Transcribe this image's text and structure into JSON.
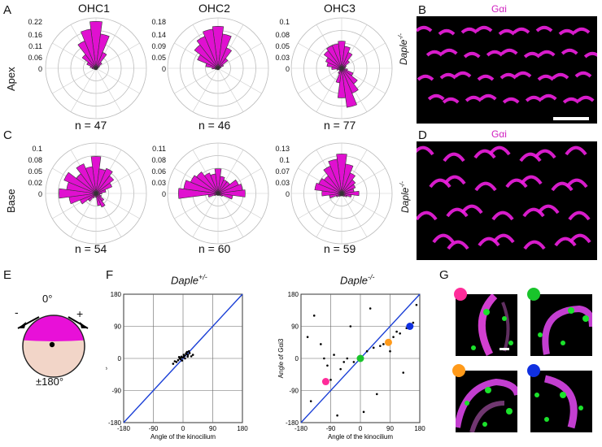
{
  "panels": {
    "A": "A",
    "B": "B",
    "C": "C",
    "D": "D",
    "E": "E",
    "F": "F",
    "G": "G"
  },
  "row_labels": {
    "apex": "Apex",
    "base": "Base"
  },
  "rose_titles": [
    "OHC1",
    "OHC2",
    "OHC3"
  ],
  "apex": {
    "ticks": [
      [
        "0.22",
        "0.16",
        "0.11",
        "0.06",
        "0"
      ],
      [
        "0.18",
        "0.14",
        "0.09",
        "0.05",
        "0"
      ],
      [
        "0.1",
        "0.08",
        "0.05",
        "0.03",
        "0"
      ]
    ],
    "n": [
      "n = 47",
      "n = 46",
      "n = 77"
    ]
  },
  "base": {
    "ticks": [
      [
        "0.1",
        "0.08",
        "0.05",
        "0.02",
        "0"
      ],
      [
        "0.11",
        "0.08",
        "0.06",
        "0.03",
        "0"
      ],
      [
        "0.13",
        "0.1",
        "0.07",
        "0.03",
        "0"
      ]
    ],
    "n": [
      "n = 54",
      "n = 60",
      "n = 59"
    ]
  },
  "micro": {
    "label_galpha": "Gαi",
    "genotype_ko": "Daple",
    "genotype_ko_sup": "-/-"
  },
  "panel_E": {
    "top": "0°",
    "bottom": "±180°",
    "minus": "-",
    "plus": "+"
  },
  "panel_F": {
    "left_title": "Daple",
    "left_sup": "+/-",
    "right_title": "Daple",
    "right_sup": "-/-",
    "xlabel": "Angle of the kinocilium",
    "ylabel": "Angle of Gαi3",
    "ticks": [
      "-180",
      "-90",
      "0",
      "90",
      "180"
    ]
  },
  "colors": {
    "magenta": "#e010d0",
    "pink_marker": "#ff2c9a",
    "green_marker": "#19c42b",
    "orange_marker": "#ff9a1a",
    "blue_marker": "#1030e0",
    "diag": "#1a3fd6"
  },
  "chart_data": [
    {
      "type": "scatter",
      "title": "Daple+/-",
      "xlabel": "Angle of the kinocilium",
      "ylabel": "Angle of Gαi3",
      "xlim": [
        -180,
        180
      ],
      "ylim": [
        -180,
        180
      ],
      "grid": true,
      "series": [
        {
          "x": [
            -20,
            -15,
            -10,
            -5,
            0,
            5,
            10,
            15,
            20,
            25,
            -25,
            -8,
            3,
            12,
            30,
            -30,
            6,
            -3,
            18,
            -12,
            9,
            2,
            -6,
            14
          ],
          "y": [
            -10,
            -5,
            0,
            5,
            3,
            8,
            12,
            10,
            15,
            6,
            -8,
            -2,
            6,
            18,
            10,
            -15,
            0,
            -6,
            20,
            4,
            14,
            10,
            2,
            5
          ]
        }
      ]
    },
    {
      "type": "scatter",
      "title": "Daple-/-",
      "xlabel": "Angle of the kinocilium",
      "ylabel": "Angle of Gαi3",
      "xlim": [
        -180,
        180
      ],
      "ylim": [
        -180,
        180
      ],
      "grid": true,
      "series": [
        {
          "x": [
            -150,
            -120,
            -100,
            -80,
            -60,
            -40,
            -20,
            0,
            20,
            40,
            60,
            80,
            100,
            120,
            140,
            160,
            -140,
            -90,
            -30,
            10,
            50,
            90,
            130,
            170,
            -160,
            -70,
            30,
            110,
            150,
            -110,
            -50,
            70
          ],
          "y": [
            -120,
            40,
            -20,
            10,
            -30,
            0,
            -10,
            5,
            20,
            30,
            35,
            45,
            60,
            70,
            85,
            100,
            120,
            -60,
            90,
            -150,
            -100,
            20,
            -40,
            150,
            60,
            -160,
            140,
            75,
            95,
            0,
            -10,
            40
          ]
        }
      ],
      "highlights": [
        {
          "x": -105,
          "y": -65,
          "color": "pink"
        },
        {
          "x": 0,
          "y": 0,
          "color": "green"
        },
        {
          "x": 85,
          "y": 45,
          "color": "orange"
        },
        {
          "x": 150,
          "y": 90,
          "color": "blue"
        }
      ]
    }
  ]
}
